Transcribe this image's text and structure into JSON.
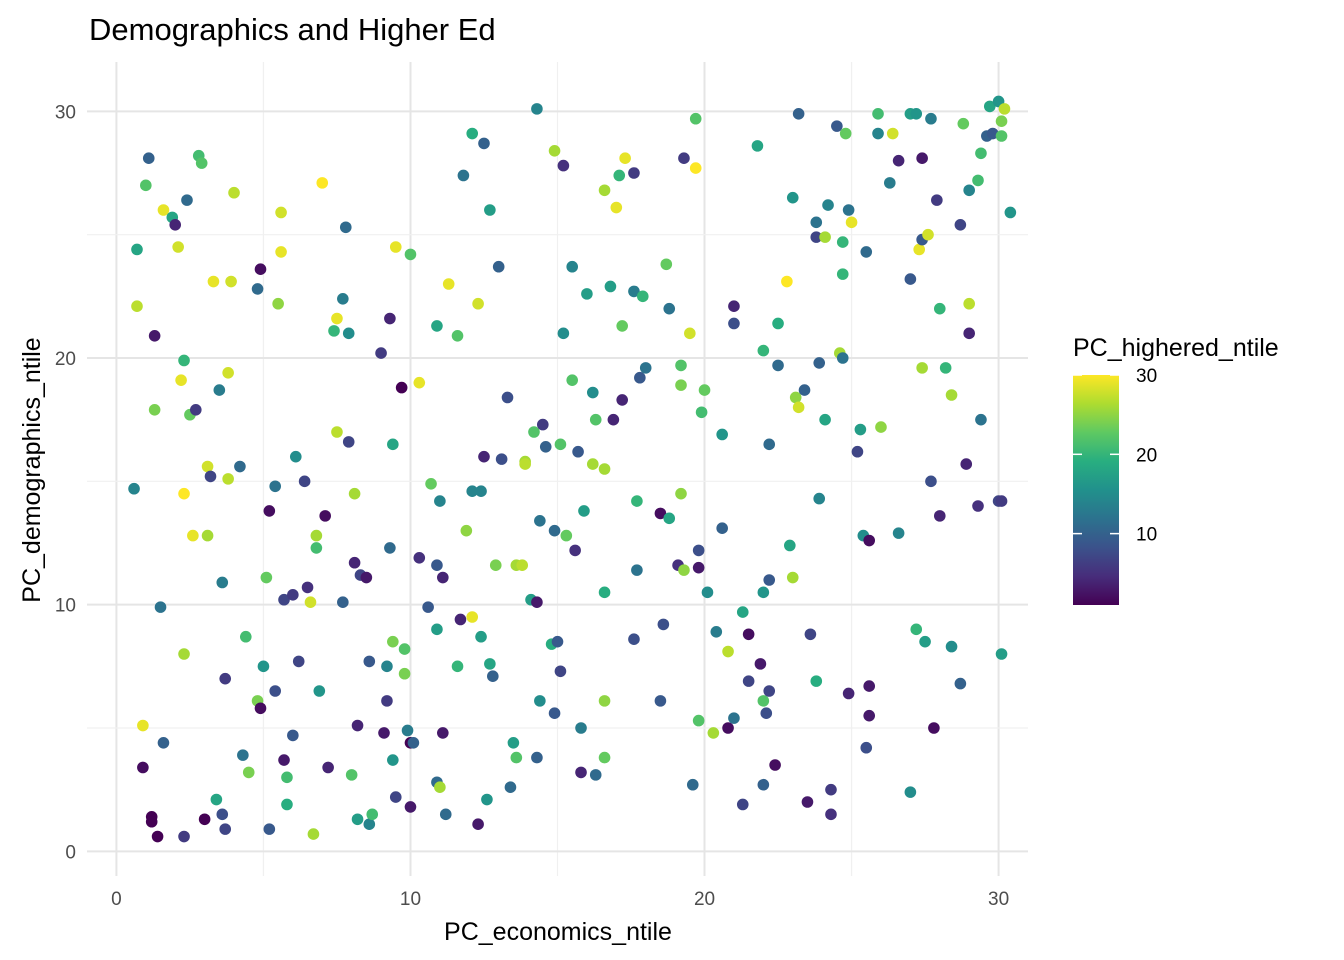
{
  "chart_data": {
    "type": "scatter",
    "title": "Demographics and Higher Ed",
    "xlabel": "PC_economics_ntile",
    "ylabel": "PC_demographics_ntile",
    "xlim": [
      -1,
      31
    ],
    "ylim": [
      -1,
      32
    ],
    "xticks": [
      0,
      10,
      20,
      30
    ],
    "yticks": [
      0,
      10,
      20,
      30
    ],
    "grid": true,
    "legend": {
      "title": "PC_highered_ntile",
      "position": "right",
      "type": "colorbar",
      "range": [
        1,
        30
      ],
      "ticks": [
        10,
        20,
        30
      ],
      "palette": [
        "#440154",
        "#472d7b",
        "#3b528b",
        "#2c728e",
        "#21918c",
        "#28ae80",
        "#5ec962",
        "#addc30",
        "#fde725"
      ]
    },
    "points": [
      [
        0.6,
        14.7,
        14
      ],
      [
        0.7,
        24.4,
        18
      ],
      [
        0.7,
        22.1,
        27
      ],
      [
        0.9,
        5.1,
        29
      ],
      [
        0.9,
        3.4,
        2
      ],
      [
        1.0,
        27.0,
        22
      ],
      [
        1.1,
        28.1,
        10
      ],
      [
        1.2,
        1.4,
        1
      ],
      [
        1.2,
        1.2,
        1
      ],
      [
        1.3,
        17.9,
        24
      ],
      [
        1.3,
        20.9,
        3
      ],
      [
        1.4,
        0.6,
        1
      ],
      [
        1.5,
        9.9,
        12
      ],
      [
        1.6,
        4.4,
        10
      ],
      [
        1.6,
        26.0,
        29
      ],
      [
        1.9,
        25.7,
        18
      ],
      [
        2.0,
        25.4,
        4
      ],
      [
        2.1,
        24.5,
        28
      ],
      [
        2.2,
        19.1,
        29
      ],
      [
        2.3,
        14.5,
        30
      ],
      [
        2.3,
        19.9,
        20
      ],
      [
        2.3,
        8.0,
        26
      ],
      [
        2.3,
        0.6,
        6
      ],
      [
        2.4,
        26.4,
        11
      ],
      [
        2.5,
        17.7,
        23
      ],
      [
        2.6,
        12.8,
        29
      ],
      [
        2.7,
        17.9,
        6
      ],
      [
        2.8,
        28.2,
        21
      ],
      [
        2.9,
        27.9,
        22
      ],
      [
        3.1,
        15.6,
        28
      ],
      [
        3.1,
        12.8,
        26
      ],
      [
        3.0,
        1.3,
        1
      ],
      [
        3.2,
        15.2,
        7
      ],
      [
        3.3,
        23.1,
        29
      ],
      [
        3.4,
        2.1,
        18
      ],
      [
        3.5,
        18.7,
        13
      ],
      [
        3.6,
        10.9,
        13
      ],
      [
        3.6,
        1.5,
        8
      ],
      [
        3.7,
        7.0,
        6
      ],
      [
        3.7,
        0.9,
        7
      ],
      [
        3.8,
        19.4,
        28
      ],
      [
        3.9,
        23.1,
        28
      ],
      [
        3.8,
        15.1,
        27
      ],
      [
        4.0,
        26.7,
        27
      ],
      [
        4.2,
        15.6,
        11
      ],
      [
        4.3,
        3.9,
        12
      ],
      [
        4.4,
        8.7,
        21
      ],
      [
        4.5,
        3.2,
        24
      ],
      [
        4.8,
        6.1,
        24
      ],
      [
        4.9,
        23.6,
        2
      ],
      [
        4.8,
        22.8,
        11
      ],
      [
        4.9,
        5.8,
        2
      ],
      [
        5.0,
        7.5,
        16
      ],
      [
        5.1,
        11.1,
        23
      ],
      [
        5.2,
        0.9,
        9
      ],
      [
        5.2,
        13.8,
        2
      ],
      [
        5.4,
        14.8,
        12
      ],
      [
        5.4,
        6.5,
        8
      ],
      [
        5.5,
        22.2,
        25
      ],
      [
        5.6,
        24.3,
        29
      ],
      [
        5.6,
        25.9,
        28
      ],
      [
        5.7,
        10.2,
        7
      ],
      [
        5.7,
        3.7,
        3
      ],
      [
        5.8,
        3.0,
        21
      ],
      [
        5.8,
        1.9,
        19
      ],
      [
        6.0,
        4.7,
        9
      ],
      [
        6.0,
        10.4,
        6
      ],
      [
        6.1,
        16.0,
        15
      ],
      [
        6.2,
        7.7,
        7
      ],
      [
        6.4,
        15.0,
        7
      ],
      [
        6.5,
        10.7,
        5
      ],
      [
        6.6,
        10.1,
        28
      ],
      [
        6.8,
        12.3,
        21
      ],
      [
        6.8,
        12.8,
        26
      ],
      [
        6.7,
        0.7,
        26
      ],
      [
        6.9,
        6.5,
        16
      ],
      [
        7.0,
        27.1,
        30
      ],
      [
        7.1,
        13.6,
        2
      ],
      [
        7.2,
        3.4,
        4
      ],
      [
        7.4,
        21.1,
        20
      ],
      [
        7.5,
        21.6,
        29
      ],
      [
        7.5,
        17.0,
        27
      ],
      [
        7.7,
        10.1,
        10
      ],
      [
        7.7,
        22.4,
        13
      ],
      [
        7.8,
        25.3,
        11
      ],
      [
        7.9,
        16.6,
        7
      ],
      [
        7.9,
        21.0,
        15
      ],
      [
        8.0,
        3.1,
        22
      ],
      [
        8.1,
        11.7,
        4
      ],
      [
        8.1,
        14.5,
        26
      ],
      [
        8.2,
        5.1,
        4
      ],
      [
        8.2,
        1.3,
        17
      ],
      [
        8.3,
        11.2,
        7
      ],
      [
        8.5,
        11.1,
        3
      ],
      [
        8.6,
        7.7,
        9
      ],
      [
        8.6,
        1.1,
        14
      ],
      [
        8.7,
        1.5,
        21
      ],
      [
        9.0,
        20.2,
        6
      ],
      [
        9.1,
        4.8,
        3
      ],
      [
        9.2,
        7.5,
        14
      ],
      [
        9.2,
        6.1,
        6
      ],
      [
        9.3,
        21.6,
        4
      ],
      [
        9.3,
        12.3,
        11
      ],
      [
        9.4,
        16.5,
        18
      ],
      [
        9.4,
        3.7,
        16
      ],
      [
        9.4,
        8.5,
        24
      ],
      [
        9.5,
        24.5,
        29
      ],
      [
        9.5,
        2.2,
        7
      ],
      [
        9.7,
        18.8,
        1
      ],
      [
        9.8,
        7.2,
        24
      ],
      [
        9.8,
        8.2,
        22
      ],
      [
        9.9,
        4.9,
        13
      ],
      [
        10.0,
        24.2,
        22
      ],
      [
        10.0,
        4.4,
        1
      ],
      [
        10.0,
        1.8,
        3
      ],
      [
        10.1,
        4.4,
        10
      ],
      [
        10.3,
        19.0,
        29
      ],
      [
        10.3,
        11.9,
        5
      ],
      [
        10.6,
        9.9,
        9
      ],
      [
        10.7,
        14.9,
        23
      ],
      [
        10.9,
        21.3,
        18
      ],
      [
        10.9,
        9.0,
        17
      ],
      [
        10.9,
        11.6,
        9
      ],
      [
        10.9,
        2.8,
        11
      ],
      [
        11.0,
        14.2,
        14
      ],
      [
        11.0,
        2.6,
        26
      ],
      [
        11.1,
        11.1,
        4
      ],
      [
        11.1,
        4.8,
        3
      ],
      [
        11.2,
        1.5,
        11
      ],
      [
        11.3,
        23.0,
        29
      ],
      [
        11.6,
        20.9,
        22
      ],
      [
        11.6,
        7.5,
        20
      ],
      [
        11.7,
        9.4,
        4
      ],
      [
        11.8,
        27.4,
        12
      ],
      [
        11.9,
        13.0,
        25
      ],
      [
        12.1,
        29.1,
        19
      ],
      [
        12.1,
        14.6,
        14
      ],
      [
        12.1,
        9.5,
        29
      ],
      [
        12.3,
        22.2,
        28
      ],
      [
        12.3,
        1.1,
        3
      ],
      [
        12.4,
        14.6,
        14
      ],
      [
        12.4,
        8.7,
        17
      ],
      [
        12.5,
        16.0,
        4
      ],
      [
        12.5,
        28.7,
        10
      ],
      [
        12.6,
        2.1,
        16
      ],
      [
        12.7,
        26.0,
        17
      ],
      [
        12.7,
        7.6,
        18
      ],
      [
        12.8,
        7.1,
        10
      ],
      [
        12.9,
        11.6,
        24
      ],
      [
        13.0,
        23.7,
        10
      ],
      [
        13.1,
        15.9,
        8
      ],
      [
        13.3,
        18.4,
        8
      ],
      [
        13.4,
        2.6,
        11
      ],
      [
        13.5,
        4.4,
        17
      ],
      [
        13.6,
        3.8,
        22
      ],
      [
        13.6,
        11.6,
        26
      ],
      [
        13.8,
        11.6,
        27
      ],
      [
        13.9,
        15.8,
        26
      ],
      [
        13.9,
        15.7,
        27
      ],
      [
        14.1,
        10.2,
        17
      ],
      [
        14.2,
        17.0,
        22
      ],
      [
        14.3,
        10.1,
        3
      ],
      [
        14.3,
        3.8,
        10
      ],
      [
        14.3,
        30.1,
        14
      ],
      [
        14.4,
        13.4,
        12
      ],
      [
        14.4,
        6.1,
        15
      ],
      [
        14.5,
        17.3,
        6
      ],
      [
        14.6,
        16.4,
        10
      ],
      [
        14.8,
        8.4,
        19
      ],
      [
        14.9,
        28.4,
        26
      ],
      [
        14.9,
        13.0,
        11
      ],
      [
        14.9,
        5.6,
        9
      ],
      [
        15.0,
        8.5,
        9
      ],
      [
        15.1,
        7.3,
        7
      ],
      [
        15.1,
        16.5,
        22
      ],
      [
        15.2,
        27.8,
        5
      ],
      [
        15.2,
        21.0,
        15
      ],
      [
        15.3,
        12.8,
        23
      ],
      [
        15.5,
        23.7,
        14
      ],
      [
        15.5,
        19.1,
        22
      ],
      [
        15.6,
        12.2,
        5
      ],
      [
        15.7,
        16.2,
        9
      ],
      [
        15.8,
        3.2,
        4
      ],
      [
        15.8,
        5.0,
        13
      ],
      [
        15.9,
        13.8,
        17
      ],
      [
        16.0,
        22.6,
        17
      ],
      [
        16.2,
        18.6,
        15
      ],
      [
        16.2,
        15.7,
        26
      ],
      [
        16.3,
        17.5,
        22
      ],
      [
        16.3,
        3.1,
        11
      ],
      [
        16.6,
        15.5,
        26
      ],
      [
        16.6,
        26.8,
        26
      ],
      [
        16.6,
        10.5,
        19
      ],
      [
        16.6,
        6.1,
        25
      ],
      [
        16.6,
        3.8,
        23
      ],
      [
        16.8,
        22.9,
        17
      ],
      [
        16.9,
        17.5,
        4
      ],
      [
        17.0,
        26.1,
        29
      ],
      [
        17.1,
        27.4,
        20
      ],
      [
        17.2,
        18.3,
        4
      ],
      [
        17.2,
        21.3,
        23
      ],
      [
        17.3,
        28.1,
        29
      ],
      [
        17.6,
        22.7,
        13
      ],
      [
        17.6,
        8.6,
        8
      ],
      [
        17.6,
        27.5,
        6
      ],
      [
        17.7,
        14.2,
        20
      ],
      [
        17.7,
        11.4,
        12
      ],
      [
        17.8,
        19.2,
        9
      ],
      [
        17.9,
        22.5,
        20
      ],
      [
        18.0,
        19.6,
        12
      ],
      [
        18.5,
        13.7,
        2
      ],
      [
        18.5,
        6.1,
        9
      ],
      [
        18.6,
        9.2,
        8
      ],
      [
        18.7,
        23.8,
        23
      ],
      [
        18.8,
        22.0,
        12
      ],
      [
        18.8,
        13.5,
        18
      ],
      [
        19.1,
        11.6,
        5
      ],
      [
        19.2,
        19.7,
        22
      ],
      [
        19.2,
        18.9,
        24
      ],
      [
        19.2,
        14.5,
        25
      ],
      [
        19.3,
        11.4,
        25
      ],
      [
        19.3,
        28.1,
        6
      ],
      [
        19.5,
        21.0,
        28
      ],
      [
        19.6,
        2.7,
        11
      ],
      [
        19.7,
        29.7,
        22
      ],
      [
        19.7,
        27.7,
        30
      ],
      [
        19.8,
        5.3,
        22
      ],
      [
        19.8,
        12.2,
        8
      ],
      [
        19.8,
        11.5,
        3
      ],
      [
        19.9,
        17.8,
        21
      ],
      [
        20.0,
        18.7,
        23
      ],
      [
        20.1,
        10.5,
        15
      ],
      [
        20.3,
        4.8,
        26
      ],
      [
        20.4,
        8.9,
        13
      ],
      [
        20.6,
        16.9,
        16
      ],
      [
        20.6,
        13.1,
        10
      ],
      [
        20.8,
        8.1,
        27
      ],
      [
        20.8,
        5.0,
        2
      ],
      [
        21.0,
        22.1,
        4
      ],
      [
        21.0,
        21.4,
        8
      ],
      [
        21.0,
        5.4,
        12
      ],
      [
        21.3,
        9.7,
        18
      ],
      [
        21.3,
        1.9,
        7
      ],
      [
        21.5,
        6.9,
        7
      ],
      [
        21.5,
        8.8,
        2
      ],
      [
        21.8,
        28.6,
        18
      ],
      [
        21.9,
        7.6,
        3
      ],
      [
        22.0,
        20.3,
        20
      ],
      [
        22.0,
        10.5,
        16
      ],
      [
        22.0,
        6.1,
        22
      ],
      [
        22.0,
        2.7,
        10
      ],
      [
        22.2,
        16.5,
        11
      ],
      [
        22.2,
        11.0,
        9
      ],
      [
        22.2,
        6.5,
        7
      ],
      [
        22.1,
        5.6,
        8
      ],
      [
        22.4,
        3.5,
        2
      ],
      [
        22.5,
        21.4,
        19
      ],
      [
        22.5,
        19.7,
        11
      ],
      [
        22.8,
        23.1,
        30
      ],
      [
        22.9,
        12.4,
        18
      ],
      [
        23.0,
        26.5,
        16
      ],
      [
        23.0,
        11.1,
        26
      ],
      [
        23.1,
        18.4,
        25
      ],
      [
        23.2,
        18.0,
        28
      ],
      [
        23.2,
        29.9,
        10
      ],
      [
        23.4,
        18.7,
        10
      ],
      [
        23.5,
        2.0,
        3
      ],
      [
        23.6,
        8.8,
        7
      ],
      [
        23.8,
        25.5,
        12
      ],
      [
        23.8,
        24.9,
        7
      ],
      [
        23.8,
        6.9,
        19
      ],
      [
        23.9,
        19.8,
        10
      ],
      [
        23.9,
        14.3,
        14
      ],
      [
        24.1,
        24.9,
        26
      ],
      [
        24.1,
        17.5,
        18
      ],
      [
        24.2,
        26.2,
        14
      ],
      [
        24.3,
        2.5,
        6
      ],
      [
        24.3,
        1.5,
        5
      ],
      [
        24.5,
        29.4,
        9
      ],
      [
        24.6,
        20.2,
        26
      ],
      [
        24.7,
        20.0,
        12
      ],
      [
        24.7,
        24.7,
        20
      ],
      [
        24.7,
        23.4,
        20
      ],
      [
        24.8,
        29.1,
        23
      ],
      [
        24.9,
        26.0,
        12
      ],
      [
        24.9,
        6.4,
        4
      ],
      [
        25.0,
        25.5,
        29
      ],
      [
        25.2,
        16.2,
        7
      ],
      [
        25.3,
        17.1,
        17
      ],
      [
        25.4,
        12.8,
        15
      ],
      [
        25.5,
        4.2,
        8
      ],
      [
        25.5,
        24.3,
        11
      ],
      [
        25.6,
        12.6,
        2
      ],
      [
        25.6,
        6.7,
        3
      ],
      [
        25.6,
        5.5,
        3
      ],
      [
        25.9,
        29.9,
        21
      ],
      [
        25.9,
        29.1,
        14
      ],
      [
        26.0,
        17.2,
        25
      ],
      [
        26.3,
        27.1,
        13
      ],
      [
        26.4,
        29.1,
        28
      ],
      [
        26.6,
        28.0,
        4
      ],
      [
        26.6,
        12.9,
        14
      ],
      [
        27.0,
        29.9,
        17
      ],
      [
        27.0,
        23.2,
        9
      ],
      [
        27.0,
        2.4,
        15
      ],
      [
        27.2,
        9.0,
        20
      ],
      [
        27.2,
        29.9,
        16
      ],
      [
        27.3,
        24.4,
        29
      ],
      [
        27.4,
        28.1,
        3
      ],
      [
        27.4,
        19.6,
        26
      ],
      [
        27.4,
        24.8,
        9
      ],
      [
        27.5,
        8.5,
        17
      ],
      [
        27.6,
        25.0,
        28
      ],
      [
        27.7,
        29.7,
        13
      ],
      [
        27.7,
        15.0,
        8
      ],
      [
        27.8,
        5.0,
        2
      ],
      [
        27.9,
        26.4,
        6
      ],
      [
        28.0,
        22.0,
        20
      ],
      [
        28.0,
        13.6,
        4
      ],
      [
        28.2,
        19.6,
        20
      ],
      [
        28.4,
        18.5,
        26
      ],
      [
        28.4,
        8.3,
        15
      ],
      [
        28.7,
        25.4,
        7
      ],
      [
        28.7,
        6.8,
        10
      ],
      [
        28.8,
        29.5,
        23
      ],
      [
        28.9,
        15.7,
        4
      ],
      [
        29.0,
        26.8,
        14
      ],
      [
        29.0,
        22.2,
        27
      ],
      [
        29.0,
        21.0,
        4
      ],
      [
        29.3,
        27.2,
        21
      ],
      [
        29.3,
        14.0,
        5
      ],
      [
        29.4,
        28.3,
        21
      ],
      [
        29.4,
        17.5,
        12
      ],
      [
        29.6,
        29.0,
        10
      ],
      [
        29.7,
        30.2,
        18
      ],
      [
        29.8,
        29.1,
        9
      ],
      [
        30.0,
        30.4,
        16
      ],
      [
        30.0,
        14.2,
        7
      ],
      [
        30.1,
        14.2,
        6
      ],
      [
        30.1,
        29.6,
        24
      ],
      [
        30.1,
        29.0,
        22
      ],
      [
        30.1,
        8.0,
        17
      ],
      [
        30.2,
        30.1,
        27
      ],
      [
        30.4,
        25.9,
        16
      ]
    ]
  }
}
